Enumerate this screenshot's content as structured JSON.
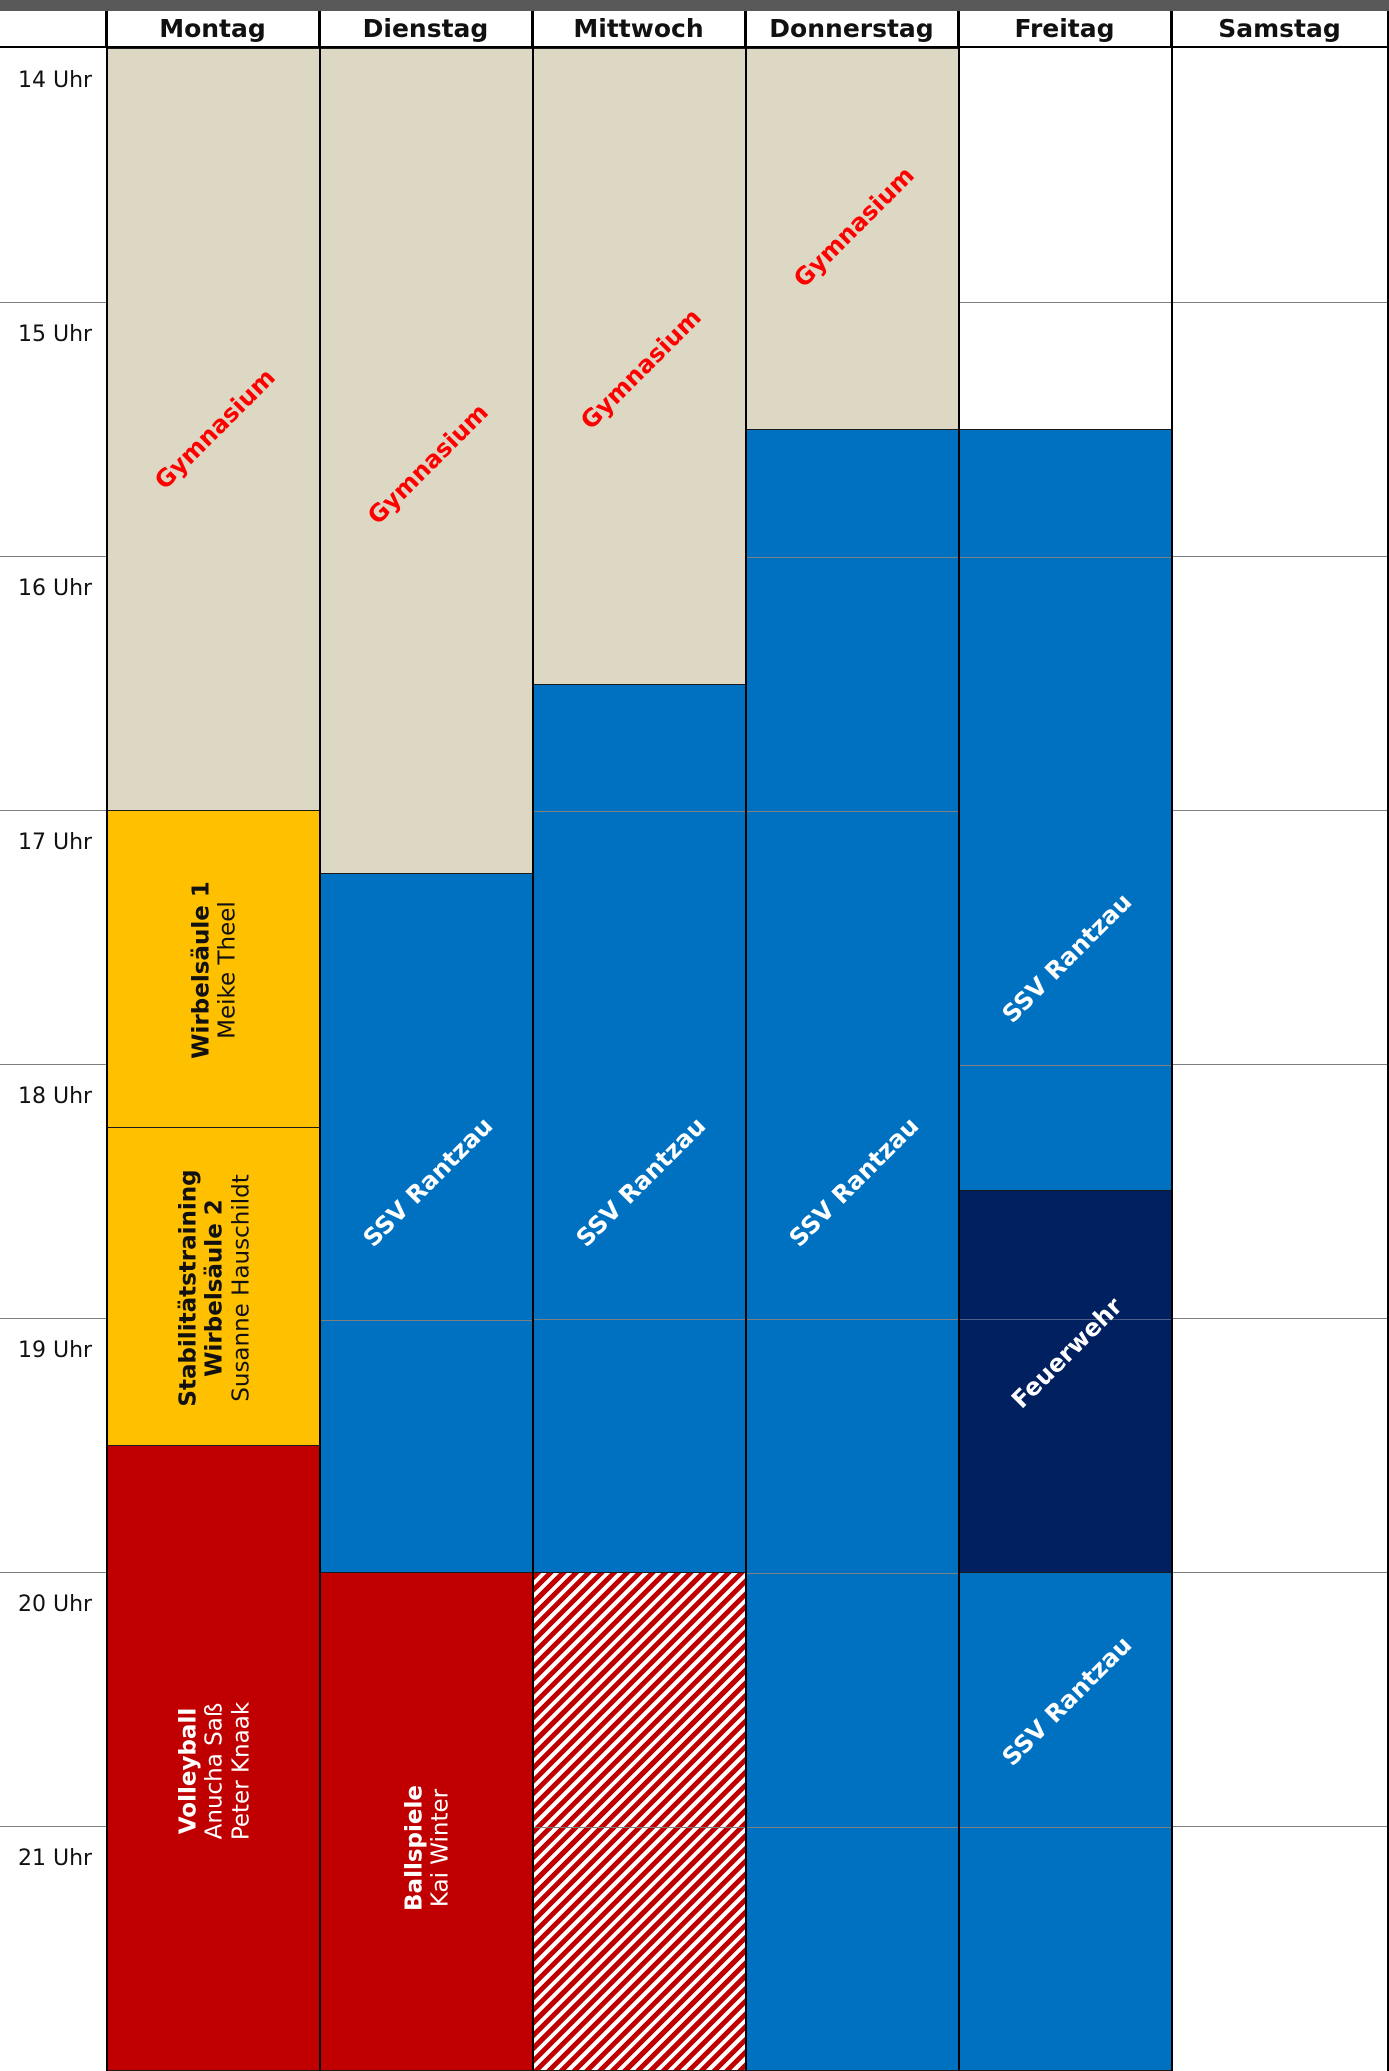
{
  "days": [
    "Montag",
    "Dienstag",
    "Mittwoch",
    "Donnerstag",
    "Freitag",
    "Samstag"
  ],
  "hours": [
    "14 Uhr",
    "15 Uhr",
    "16 Uhr",
    "17 Uhr",
    "18 Uhr",
    "19 Uhr",
    "20 Uhr",
    "21 Uhr"
  ],
  "colors": {
    "school": "#ddd8c4",
    "club": "#0070c0",
    "fire_dept": "#002060",
    "sport_red": "#c00000",
    "course_yellow": "#ffc000",
    "school_text": "#ff0000"
  },
  "blocks": {
    "mon_gym": "Gymnasium",
    "tue_gym": "Gymnasium",
    "wed_gym": "Gymnasium",
    "thu_gym": "Gymnasium",
    "mon_wirbel": {
      "title": "Wirbelsäule 1",
      "trainer": "Meike Theel"
    },
    "mon_stabi": {
      "title_line1": "Stabilitätstraining",
      "title_line2": "Wirbelsäule 2",
      "trainer": "Susanne Hauschildt"
    },
    "mon_volley": {
      "title": "Volleyball",
      "trainer1": "Anucha Saß",
      "trainer2": "Peter Knaak"
    },
    "tue_ballspiele": {
      "title": "Ballspiele",
      "trainer": "Kai Winter"
    },
    "tue_ssv": "SSV Rantzau",
    "wed_ssv": "SSV Rantzau",
    "thu_ssv": "SSV Rantzau",
    "fri_ssv1": "SSV Rantzau",
    "fri_feuerwehr": "Feuerwehr",
    "fri_ssv2": "SSV Rantzau"
  }
}
